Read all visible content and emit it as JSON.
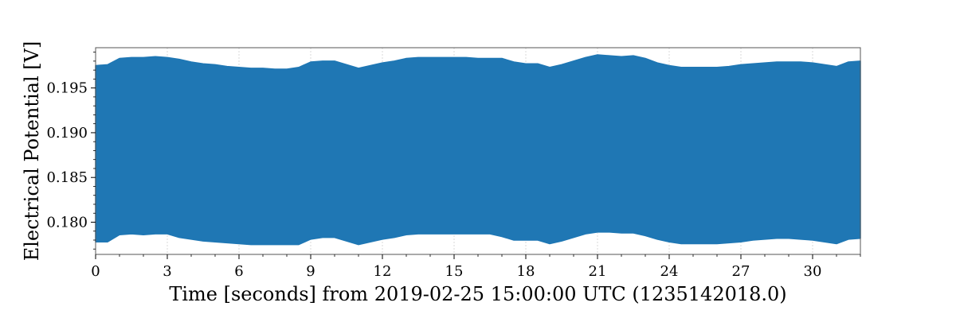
{
  "chart_data": {
    "type": "area",
    "title": "",
    "xlabel": "Time [seconds] from 2019-02-25 15:00:00 UTC (1235142018.0)",
    "ylabel": "Electrical Potential [V]",
    "xlim": [
      0,
      32
    ],
    "ylim": [
      0.1764,
      0.1995
    ],
    "x_ticks": [
      0,
      3,
      6,
      9,
      12,
      15,
      18,
      21,
      24,
      27,
      30
    ],
    "x_tick_labels": [
      "0",
      "3",
      "6",
      "9",
      "12",
      "15",
      "18",
      "21",
      "24",
      "27",
      "30"
    ],
    "y_ticks": [
      0.18,
      0.185,
      0.19,
      0.195
    ],
    "y_tick_labels": [
      "0.180",
      "0.185",
      "0.190",
      "0.195"
    ],
    "grid": true,
    "series": [
      {
        "color": "#1f77b4",
        "x": [
          0.0,
          0.5,
          1.0,
          1.5,
          2.0,
          2.5,
          3.0,
          3.5,
          4.0,
          4.5,
          5.0,
          5.5,
          6.0,
          6.5,
          7.0,
          7.5,
          8.0,
          8.5,
          9.0,
          9.5,
          10.0,
          10.5,
          11.0,
          11.5,
          12.0,
          12.5,
          13.0,
          13.5,
          14.0,
          14.5,
          15.0,
          15.5,
          16.0,
          16.5,
          17.0,
          17.5,
          18.0,
          18.5,
          19.0,
          19.5,
          20.0,
          20.5,
          21.0,
          21.5,
          22.0,
          22.5,
          23.0,
          23.5,
          24.0,
          24.5,
          25.0,
          25.5,
          26.0,
          26.5,
          27.0,
          27.5,
          28.0,
          28.5,
          29.0,
          29.5,
          30.0,
          30.5,
          31.0,
          31.5,
          32.0
        ],
        "upper": [
          0.1975,
          0.1976,
          0.1983,
          0.1984,
          0.1984,
          0.1985,
          0.1984,
          0.1982,
          0.1979,
          0.1977,
          0.1976,
          0.1974,
          0.1973,
          0.1972,
          0.1972,
          0.1971,
          0.1971,
          0.1973,
          0.1979,
          0.198,
          0.198,
          0.1976,
          0.1972,
          0.1975,
          0.1978,
          0.198,
          0.1983,
          0.1984,
          0.1984,
          0.1984,
          0.1984,
          0.1984,
          0.1983,
          0.1983,
          0.1983,
          0.1979,
          0.1977,
          0.1977,
          0.1973,
          0.1976,
          0.198,
          0.1984,
          0.1987,
          0.1986,
          0.1985,
          0.1986,
          0.1983,
          0.1978,
          0.1975,
          0.1973,
          0.1973,
          0.1973,
          0.1973,
          0.1974,
          0.1976,
          0.1977,
          0.1978,
          0.1979,
          0.1979,
          0.1979,
          0.1978,
          0.1976,
          0.1974,
          0.1979,
          0.198
        ],
        "lower": [
          0.1778,
          0.1778,
          0.1786,
          0.1787,
          0.1786,
          0.1787,
          0.1787,
          0.1783,
          0.1781,
          0.1779,
          0.1778,
          0.1777,
          0.1776,
          0.1775,
          0.1775,
          0.1775,
          0.1775,
          0.1775,
          0.1781,
          0.1783,
          0.1783,
          0.1779,
          0.1775,
          0.1778,
          0.1781,
          0.1783,
          0.1786,
          0.1787,
          0.1787,
          0.1787,
          0.1787,
          0.1787,
          0.1787,
          0.1787,
          0.1784,
          0.178,
          0.178,
          0.178,
          0.1776,
          0.1779,
          0.1783,
          0.1787,
          0.1789,
          0.1789,
          0.1788,
          0.1788,
          0.1785,
          0.1781,
          0.1778,
          0.1776,
          0.1776,
          0.1776,
          0.1776,
          0.1777,
          0.1778,
          0.178,
          0.1781,
          0.1782,
          0.1782,
          0.1781,
          0.178,
          0.1778,
          0.1776,
          0.1781,
          0.1782
        ]
      }
    ]
  }
}
